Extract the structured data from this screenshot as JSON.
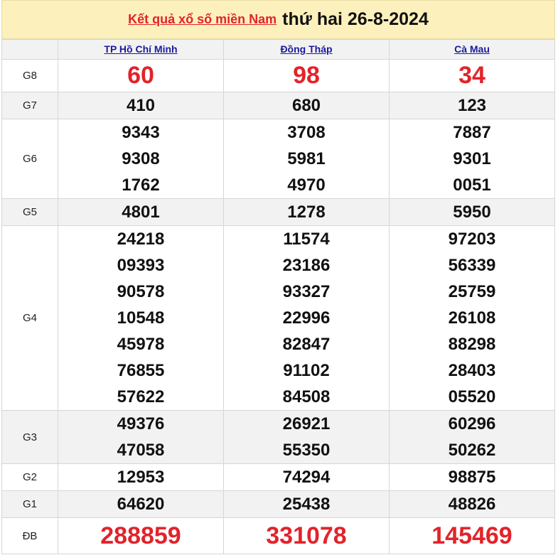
{
  "title": {
    "link": "Kết quả xổ số miền Nam",
    "date": "thứ hai 26-8-2024"
  },
  "provinces": [
    "TP Hồ Chí Minh",
    "Đồng Tháp",
    "Cà Mau"
  ],
  "rows": [
    {
      "label": "G8",
      "big": true,
      "values": [
        [
          "60"
        ],
        [
          "98"
        ],
        [
          "34"
        ]
      ]
    },
    {
      "label": "G7",
      "values": [
        [
          "410"
        ],
        [
          "680"
        ],
        [
          "123"
        ]
      ]
    },
    {
      "label": "G6",
      "values": [
        [
          "9343",
          "9308",
          "1762"
        ],
        [
          "3708",
          "5981",
          "4970"
        ],
        [
          "7887",
          "9301",
          "0051"
        ]
      ]
    },
    {
      "label": "G5",
      "values": [
        [
          "4801"
        ],
        [
          "1278"
        ],
        [
          "5950"
        ]
      ]
    },
    {
      "label": "G4",
      "values": [
        [
          "24218",
          "09393",
          "90578",
          "10548",
          "45978",
          "76855",
          "57622"
        ],
        [
          "11574",
          "23186",
          "93327",
          "22996",
          "82847",
          "91102",
          "84508"
        ],
        [
          "97203",
          "56339",
          "25759",
          "26108",
          "88298",
          "28403",
          "05520"
        ]
      ]
    },
    {
      "label": "G3",
      "values": [
        [
          "49376",
          "47058"
        ],
        [
          "26921",
          "55350"
        ],
        [
          "60296",
          "50262"
        ]
      ]
    },
    {
      "label": "G2",
      "values": [
        [
          "12953"
        ],
        [
          "74294"
        ],
        [
          "98875"
        ]
      ]
    },
    {
      "label": "G1",
      "values": [
        [
          "64620"
        ],
        [
          "25438"
        ],
        [
          "48826"
        ]
      ]
    },
    {
      "label": "ĐB",
      "big": true,
      "values": [
        [
          "288859"
        ],
        [
          "331078"
        ],
        [
          "145469"
        ]
      ]
    }
  ],
  "colors": {
    "header_bg": "#fcf1bd",
    "accent_red": "#e2232a",
    "link_blue": "#1a1a9e",
    "stripe": "#f2f2f2"
  }
}
